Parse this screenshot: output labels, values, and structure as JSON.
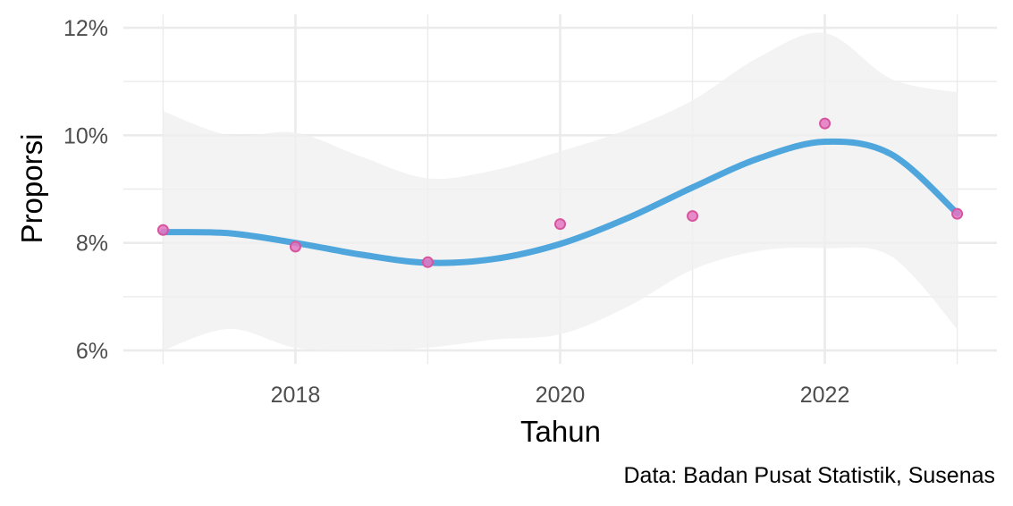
{
  "chart_data": {
    "type": "scatter",
    "xlabel": "Tahun",
    "ylabel": "Proporsi",
    "caption": "Data: Badan Pusat Statistik, Susenas",
    "x_ticks": [
      "2018",
      "2020",
      "2022"
    ],
    "y_ticks": [
      "6%",
      "8%",
      "10%",
      "12%"
    ],
    "xlim": [
      2016.7,
      2023.3
    ],
    "ylim": [
      5.75,
      12.25
    ],
    "grid": true,
    "legend": "none",
    "series": [
      {
        "kind": "points",
        "x": [
          2017,
          2018,
          2019,
          2020,
          2021,
          2022,
          2023
        ],
        "y": [
          8.24,
          7.93,
          7.64,
          8.35,
          8.5,
          10.22,
          8.54
        ]
      }
    ],
    "trend": {
      "kind": "smooth",
      "x": [
        2017,
        2017.5,
        2018,
        2018.5,
        2019,
        2019.5,
        2020,
        2020.5,
        2021,
        2021.5,
        2022,
        2022.5,
        2023
      ],
      "y": [
        8.2,
        8.18,
        8.0,
        7.78,
        7.63,
        7.7,
        7.98,
        8.45,
        9.03,
        9.57,
        9.88,
        9.65,
        8.55
      ],
      "ci_lower": [
        6.0,
        6.4,
        6.05,
        6.0,
        6.05,
        6.2,
        6.3,
        6.8,
        7.5,
        7.85,
        7.9,
        7.75,
        6.4
      ],
      "ci_upper": [
        10.45,
        10.0,
        10.05,
        9.6,
        9.2,
        9.35,
        9.7,
        10.1,
        10.65,
        11.45,
        11.9,
        11.05,
        10.8
      ]
    },
    "colors": {
      "points": "#e377c2",
      "points_outline": "#d8559e",
      "line": "#4fa6dd",
      "ribbon": "#f0f0f0"
    }
  }
}
